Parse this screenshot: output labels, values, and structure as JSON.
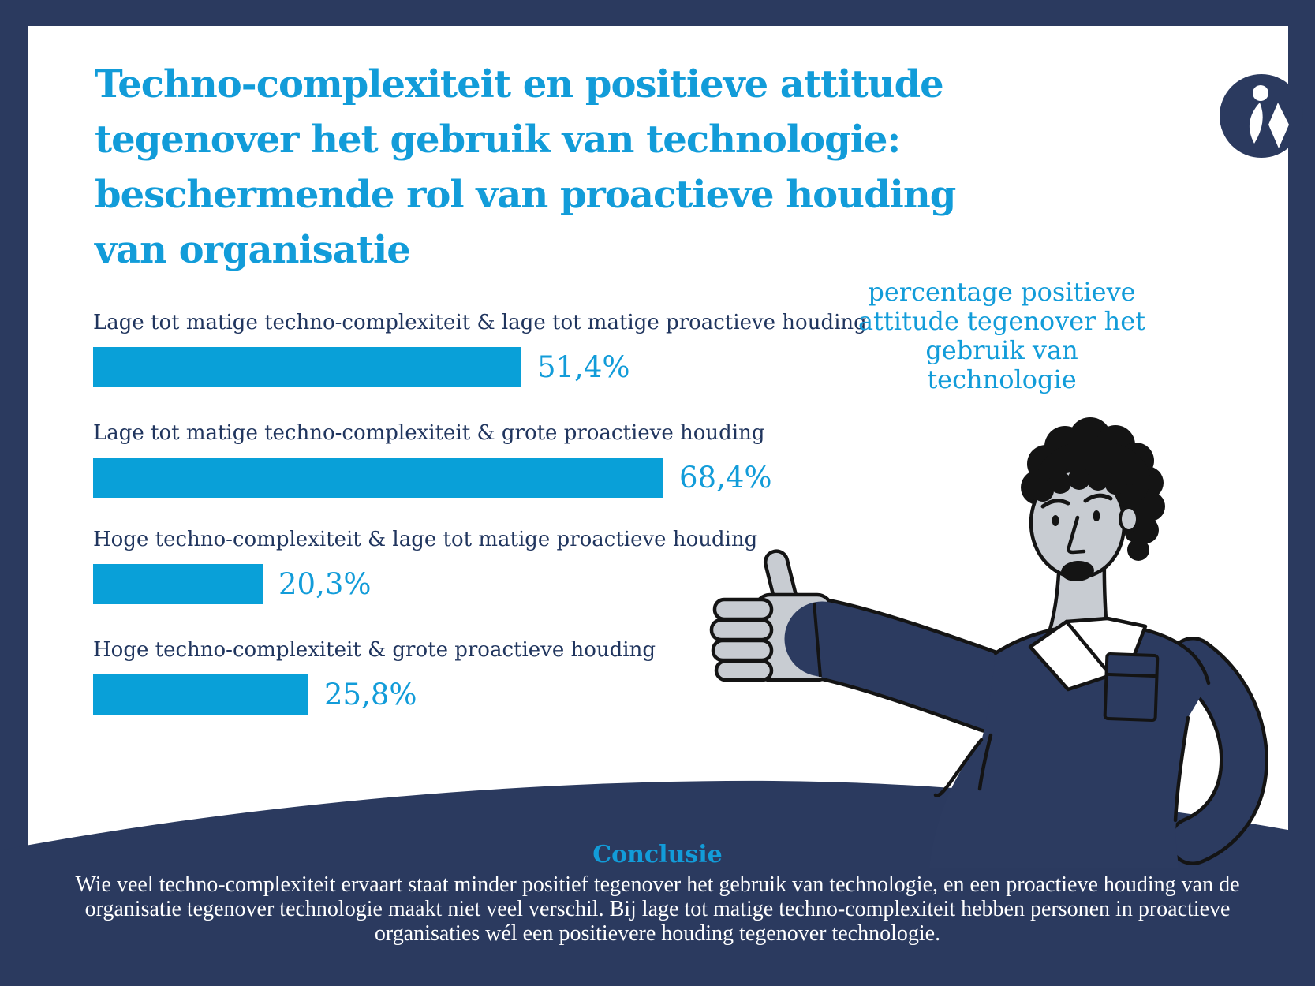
{
  "title": "Techno-complexiteit en positieve attitude\ntegenover het gebruik van technologie:\nbeschermende rol van proactieve houding\nvan organisatie",
  "annotation": "percentage positieve\nattitude tegenover het\ngebruik van technologie",
  "chart_data": {
    "type": "bar",
    "orientation": "horizontal",
    "title": "Techno-complexiteit en positieve attitude tegenover het gebruik van technologie: beschermende rol van proactieve houding van organisatie",
    "categories": [
      "Lage tot matige techno-complexiteit & lage tot matige proactieve houding",
      "Lage tot matige techno-complexiteit & grote proactieve houding",
      "Hoge techno-complexiteit & lage tot matige proactieve houding",
      "Hoge techno-complexiteit & grote proactieve houding"
    ],
    "values": [
      51.4,
      68.4,
      20.3,
      25.8
    ],
    "value_labels": [
      "51,4%",
      "68,4%",
      "20,3%",
      "25,8%"
    ],
    "xlabel": "percentage positieve attitude tegenover het gebruik van technologie",
    "xlim": [
      0,
      100
    ],
    "grid": false,
    "legend": false
  },
  "conclusion": {
    "heading": "Conclusie",
    "text": "Wie veel techno-complexiteit ervaart staat minder positief tegenover het gebruik van technologie, en een proactieve houding van de organisatie tegenover technologie maakt niet veel verschil. Bij lage tot matige techno-complexiteit hebben personen in proactieve organisaties wél een positievere houding tegenover technologie."
  },
  "logo": {
    "name": "idewe-logo"
  },
  "colors": {
    "background_navy": "#2B3A5F",
    "card_white": "#FFFFFF",
    "accent_blue": "#129CD9",
    "bar_blue": "#09A0D8",
    "label_navy": "#20355E",
    "skin_gray": "#C8CCD2",
    "outline_black": "#141414"
  }
}
